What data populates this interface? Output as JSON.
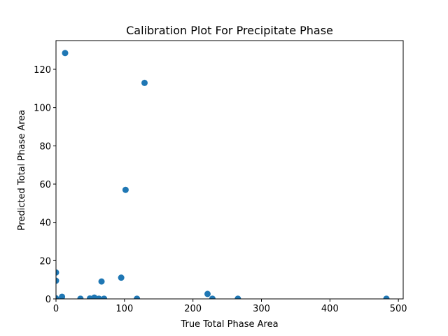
{
  "chart_data": {
    "type": "scatter",
    "title": "Calibration Plot For Precipitate Phase",
    "xlabel": "True Total Phase Area",
    "ylabel": "Predicted Total Phase Area",
    "xlim": [
      0,
      507
    ],
    "ylim": [
      0,
      135
    ],
    "xticks": [
      0,
      100,
      200,
      300,
      400,
      500
    ],
    "yticks": [
      0,
      20,
      40,
      60,
      80,
      100,
      120
    ],
    "grid": false,
    "legend": "none",
    "marker_color": "#1f77b4",
    "points": [
      {
        "x": 13.3,
        "y": 128.5
      },
      {
        "x": 129.3,
        "y": 112.9
      },
      {
        "x": 101.6,
        "y": 57.0
      },
      {
        "x": 0.0,
        "y": 13.8
      },
      {
        "x": 0.0,
        "y": 9.5
      },
      {
        "x": 66.5,
        "y": 9.1
      },
      {
        "x": 95.2,
        "y": 11.1
      },
      {
        "x": 8.8,
        "y": 1.1
      },
      {
        "x": 0.0,
        "y": 0.3
      },
      {
        "x": 35.7,
        "y": 0.1
      },
      {
        "x": 49.5,
        "y": 0.2
      },
      {
        "x": 56.0,
        "y": 0.7
      },
      {
        "x": 62.7,
        "y": 0.1
      },
      {
        "x": 70.2,
        "y": 0.1
      },
      {
        "x": 118.2,
        "y": 0.1
      },
      {
        "x": 221.3,
        "y": 2.6
      },
      {
        "x": 228.4,
        "y": 0.1
      },
      {
        "x": 265.6,
        "y": 0.1
      },
      {
        "x": 482.5,
        "y": 0.1
      }
    ]
  }
}
